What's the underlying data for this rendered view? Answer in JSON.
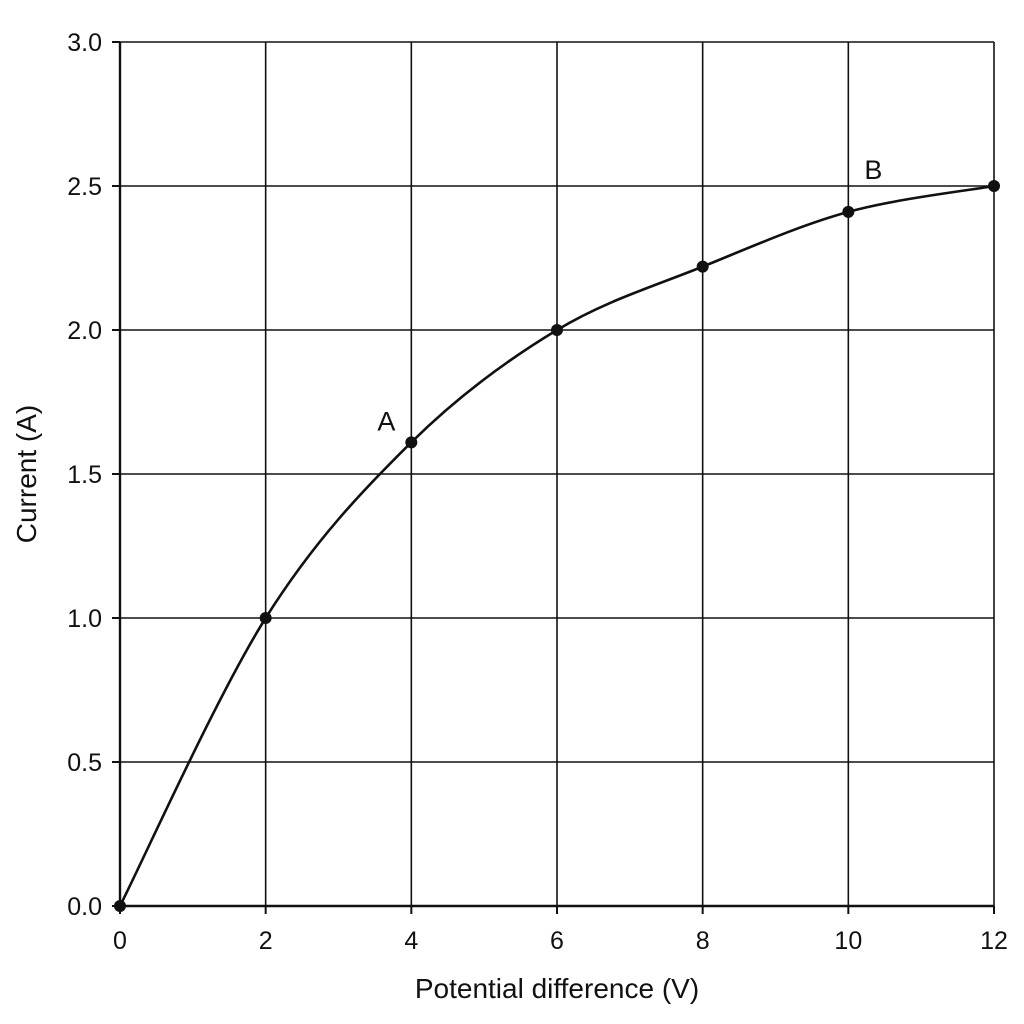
{
  "chart_data": {
    "type": "line",
    "xlabel": "Potential difference (V)",
    "ylabel": "Current (A)",
    "xlim": [
      0,
      12
    ],
    "ylim": [
      0,
      3.0
    ],
    "grid": true,
    "x_ticks": [
      "0",
      "2",
      "4",
      "6",
      "8",
      "10",
      "12"
    ],
    "y_ticks": [
      "0.0",
      "0.5",
      "1.0",
      "1.5",
      "2.0",
      "2.5",
      "3.0"
    ],
    "x_tick_values": [
      0,
      2,
      4,
      6,
      8,
      10,
      12
    ],
    "y_tick_values": [
      0,
      0.5,
      1.0,
      1.5,
      2.0,
      2.5,
      3.0
    ],
    "series": [
      {
        "x": [
          0,
          2,
          4,
          6,
          8,
          10,
          12
        ],
        "values": [
          0,
          1.0,
          1.61,
          2.0,
          2.22,
          2.41,
          2.5
        ],
        "color": "#111111"
      }
    ],
    "annotations": [
      {
        "text": "A",
        "x": 4,
        "y": 1.61
      },
      {
        "text": "B",
        "x": 10,
        "y": 2.41
      }
    ]
  }
}
